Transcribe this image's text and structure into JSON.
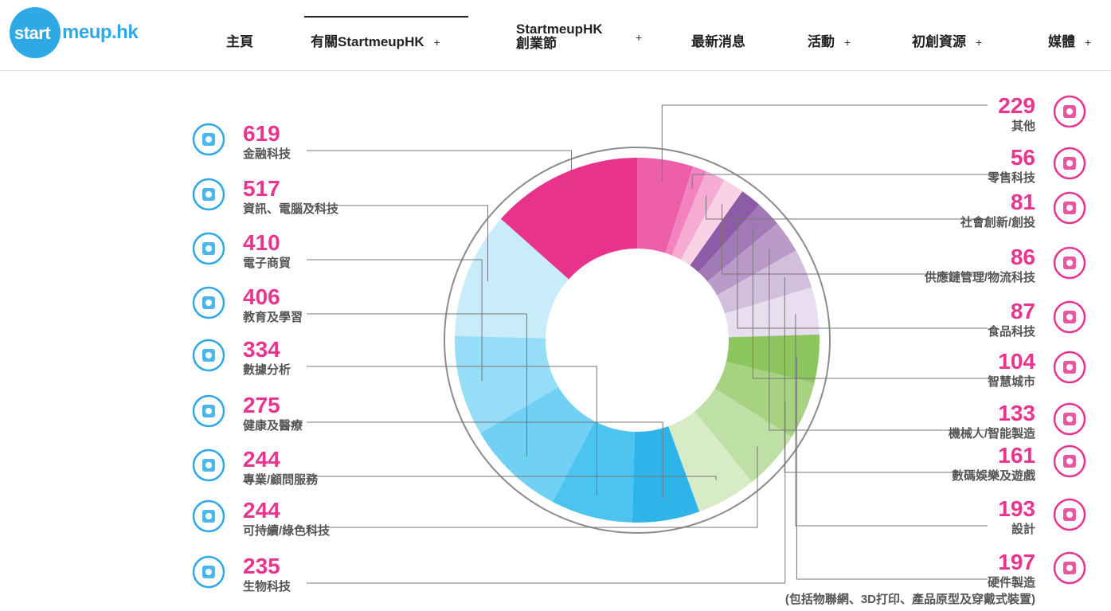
{
  "logo": {
    "part1": "start",
    "part2": "meup.hk"
  },
  "nav": {
    "items": [
      {
        "label": "主頁"
      },
      {
        "label": "有關StartmeupHK",
        "plus": "+"
      },
      {
        "label1": "StartmeupHK",
        "label2": "創業節",
        "plus": "+"
      },
      {
        "label": "最新消息"
      },
      {
        "label": "活動",
        "plus": "+"
      },
      {
        "label": "初創資源",
        "plus": "+"
      },
      {
        "label": "媒體",
        "plus": "+"
      }
    ]
  },
  "chart_data": {
    "type": "pie",
    "donut": true,
    "slices": [
      {
        "value": 229,
        "label": "其他",
        "color": "#ec5ea7",
        "icon": "globe-icon"
      },
      {
        "value": 56,
        "label": "零售科技",
        "color": "#f283be",
        "icon": "shopping-bag-icon"
      },
      {
        "value": 81,
        "label": "社會創新/創投",
        "color": "#f6acd2",
        "icon": "chat-bubbles-icon"
      },
      {
        "value": 86,
        "label": "供應鏈管理/物流科技",
        "color": "#f9d2e6",
        "icon": "supply-chain-icon"
      },
      {
        "value": 87,
        "label": "食品科技",
        "color": "#8e5ca6",
        "icon": "food-tech-icon"
      },
      {
        "value": 104,
        "label": "智慧城市",
        "color": "#a17ab5",
        "icon": "smart-city-icon"
      },
      {
        "value": 133,
        "label": "機械人/智能製造",
        "color": "#b99ac8",
        "icon": "robot-arm-icon"
      },
      {
        "value": 161,
        "label": "數碼娛樂及遊戲",
        "color": "#d2bfdc",
        "icon": "gamepad-icon"
      },
      {
        "value": 193,
        "label": "設計",
        "color": "#e8def0",
        "icon": "design-board-icon"
      },
      {
        "value": 197,
        "label": "硬件製造",
        "sublabel": "(包括物聯網、3D打印、產品原型及穿戴式裝置)",
        "color": "#8dc65f",
        "icon": "hardware-box-icon"
      },
      {
        "value": 235,
        "label": "生物科技",
        "color": "#a6d282",
        "icon": "atom-icon"
      },
      {
        "value": 244,
        "label": "可持續/綠色科技",
        "color": "#bedfa6",
        "icon": "plant-flask-icon"
      },
      {
        "value": 244,
        "label": "專業/顧問服務",
        "color": "#d6ebc6",
        "icon": "consulting-icon"
      },
      {
        "value": 275,
        "label": "健康及醫療",
        "color": "#2fb4ea",
        "icon": "heart-syringe-icon"
      },
      {
        "value": 334,
        "label": "數據分析",
        "color": "#4dc3f0",
        "icon": "data-analysis-icon"
      },
      {
        "value": 406,
        "label": "教育及學習",
        "color": "#70d1f4",
        "icon": "graduation-certificate-icon"
      },
      {
        "value": 410,
        "label": "電子商貿",
        "color": "#96def7",
        "icon": "ecommerce-flow-icon"
      },
      {
        "value": 517,
        "label": "資訊、電腦及科技",
        "color": "#c8ecfa",
        "icon": "devices-icon"
      },
      {
        "value": 619,
        "label": "金融科技",
        "color": "#e8338d",
        "icon": "dollar-coin-icon"
      }
    ]
  }
}
